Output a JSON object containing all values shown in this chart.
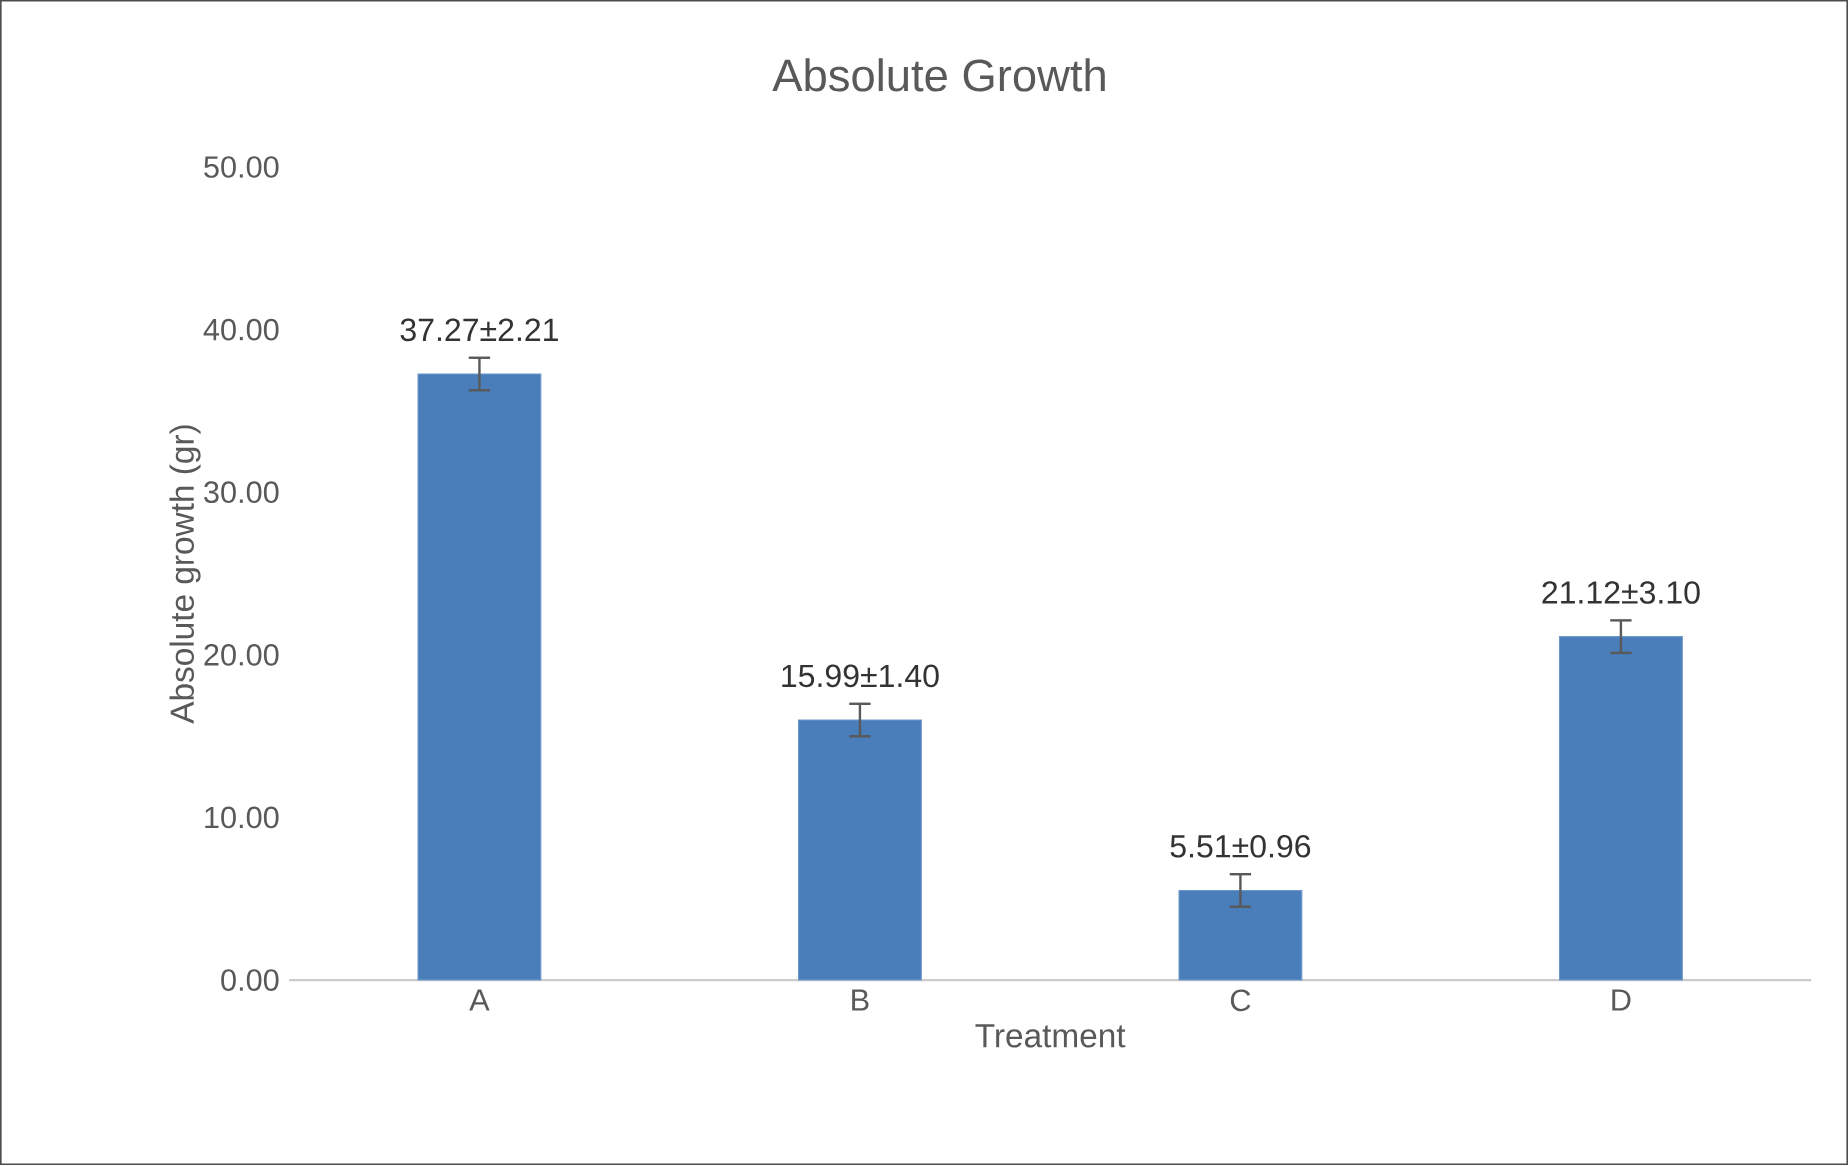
{
  "chart_data": {
    "type": "bar",
    "title": "Absolute Growth",
    "xlabel": "Treatment",
    "ylabel": "Absolute growth (gr)",
    "categories": [
      "A",
      "B",
      "C",
      "D"
    ],
    "values": [
      37.27,
      15.99,
      5.51,
      21.12
    ],
    "errors": [
      1,
      1,
      1,
      1
    ],
    "value_labels": [
      "37.27±2.21",
      "15.99±1.40",
      "5.51±0.96",
      "21.12±3.10"
    ],
    "color": "#4a7ebb",
    "ylim": [
      0,
      50
    ],
    "yticks": [
      {
        "value": 0,
        "label": "0.00"
      },
      {
        "value": 10,
        "label": "10.00"
      },
      {
        "value": 20,
        "label": "20.00"
      },
      {
        "value": 30,
        "label": "30.00"
      },
      {
        "value": 40,
        "label": "40.00"
      },
      {
        "value": 50,
        "label": "50.00"
      }
    ],
    "grid": false
  }
}
